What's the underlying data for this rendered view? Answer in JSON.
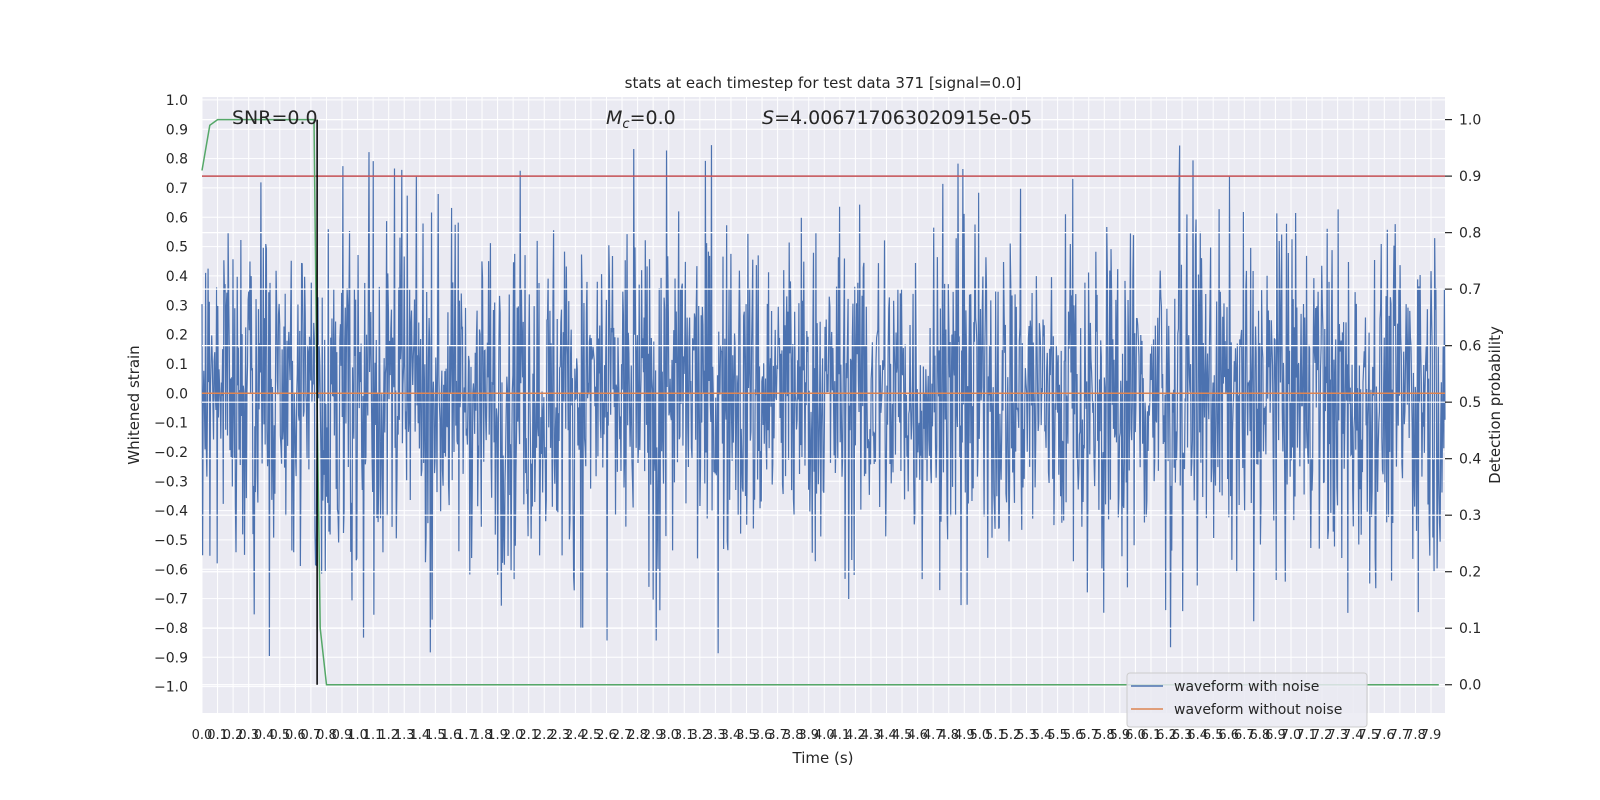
{
  "chart_data": {
    "type": "line",
    "title": "stats at each timestep for test data 371 [signal=0.0]",
    "xlabel": "Time (s)",
    "ylabel_left": "Whitened strain",
    "ylabel_right": "Detection probability",
    "xlim": [
      0.0,
      7.99
    ],
    "ylim_left": [
      -1.09,
      1.01
    ],
    "ylim_right": [
      -0.05,
      1.04
    ],
    "yticks_left": [
      "1.0",
      "0.9",
      "0.8",
      "0.7",
      "0.6",
      "0.5",
      "0.4",
      "0.3",
      "0.2",
      "0.1",
      "0.0",
      "−0.1",
      "−0.2",
      "−0.3",
      "−0.4",
      "−0.5",
      "−0.6",
      "−0.7",
      "−0.8",
      "−0.9",
      "−1.0"
    ],
    "yticks_left_values": [
      1.0,
      0.9,
      0.8,
      0.7,
      0.6,
      0.5,
      0.4,
      0.3,
      0.2,
      0.1,
      0.0,
      -0.1,
      -0.2,
      -0.3,
      -0.4,
      -0.5,
      -0.6,
      -0.7,
      -0.8,
      -0.9,
      -1.0
    ],
    "yticks_right": [
      "1.0",
      "0.9",
      "0.8",
      "0.7",
      "0.6",
      "0.5",
      "0.4",
      "0.3",
      "0.2",
      "0.1",
      "0.0"
    ],
    "yticks_right_values": [
      1.0,
      0.9,
      0.8,
      0.7,
      0.6,
      0.5,
      0.4,
      0.3,
      0.2,
      0.1,
      0.0
    ],
    "xticks": [
      "0.0",
      "0.1",
      "0.2",
      "0.3",
      "0.4",
      "0.5",
      "0.6",
      "0.7",
      "0.8",
      "0.9",
      "1.0",
      "1.1",
      "1.2",
      "1.3",
      "1.4",
      "1.5",
      "1.6",
      "1.7",
      "1.8",
      "1.9",
      "2.0",
      "2.1",
      "2.2",
      "2.3",
      "2.4",
      "2.5",
      "2.6",
      "2.7",
      "2.8",
      "2.9",
      "3.0",
      "3.1",
      "3.2",
      "3.3",
      "3.4",
      "3.5",
      "3.6",
      "3.7",
      "3.8",
      "3.9",
      "4.0",
      "4.1",
      "4.2",
      "4.3",
      "4.4",
      "4.5",
      "4.6",
      "4.7",
      "4.8",
      "4.9",
      "5.0",
      "5.1",
      "5.2",
      "5.3",
      "5.4",
      "5.5",
      "5.6",
      "5.7",
      "5.8",
      "5.9",
      "6.0",
      "6.1",
      "6.2",
      "6.3",
      "6.4",
      "6.5",
      "6.6",
      "6.7",
      "6.8",
      "6.9",
      "7.0",
      "7.1",
      "7.2",
      "7.3",
      "7.4",
      "7.5",
      "7.6",
      "7.7",
      "7.8",
      "7.9"
    ],
    "xticks_values": [
      0.0,
      0.1,
      0.2,
      0.3,
      0.4,
      0.5,
      0.6,
      0.7,
      0.8,
      0.9,
      1.0,
      1.1,
      1.2,
      1.3,
      1.4,
      1.5,
      1.6,
      1.7,
      1.8,
      1.9,
      2.0,
      2.1,
      2.2,
      2.3,
      2.4,
      2.5,
      2.6,
      2.7,
      2.8,
      2.9,
      3.0,
      3.1,
      3.2,
      3.3,
      3.4,
      3.5,
      3.6,
      3.7,
      3.8,
      3.9,
      4.0,
      4.1,
      4.2,
      4.3,
      4.4,
      4.5,
      4.6,
      4.7,
      4.8,
      4.9,
      5.0,
      5.1,
      5.2,
      5.3,
      5.4,
      5.5,
      5.6,
      5.7,
      5.8,
      5.9,
      6.0,
      6.1,
      6.2,
      6.3,
      6.4,
      6.5,
      6.6,
      6.7,
      6.8,
      6.9,
      7.0,
      7.1,
      7.2,
      7.3,
      7.4,
      7.5,
      7.6,
      7.7,
      7.8,
      7.9
    ],
    "annotations": {
      "snr": "SNR=0.0",
      "mc_symbol": "M",
      "mc_sub": "c",
      "mc_value": "=0.0",
      "s_symbol": "S",
      "s_value": "=4.006717063020915e-05"
    },
    "legend": {
      "placement": "lower-right",
      "entries": [
        "waveform with noise",
        "waveform without noise"
      ]
    },
    "series": [
      {
        "name": "waveform with noise",
        "axis": "left",
        "color": "#4c72b0",
        "kind": "noise",
        "points": 2048,
        "typical_envelope": [
          -0.45,
          0.45
        ],
        "peak_max": 0.92,
        "peak_min": -0.99
      },
      {
        "name": "waveform without noise",
        "axis": "left",
        "color": "#dd8452",
        "x": [
          0.0,
          7.99
        ],
        "y": [
          0.0,
          0.0
        ]
      },
      {
        "axis": "right",
        "color": "#55a868",
        "x": [
          0.0,
          0.05,
          0.1,
          0.7,
          0.72,
          0.74,
          0.76,
          0.8,
          7.95
        ],
        "y": [
          0.91,
          0.99,
          1.0,
          1.0,
          1.0,
          0.5,
          0.1,
          0.0,
          0.0
        ]
      }
    ],
    "threshold_line": {
      "axis": "right",
      "value": 0.9,
      "color": "#c44e52"
    },
    "marker_line": {
      "x": 0.74,
      "color": "#000000"
    },
    "grid": true,
    "colors": {
      "axes_background": "#eaeaf2",
      "grid": "#ffffff",
      "text": "#262626"
    }
  }
}
